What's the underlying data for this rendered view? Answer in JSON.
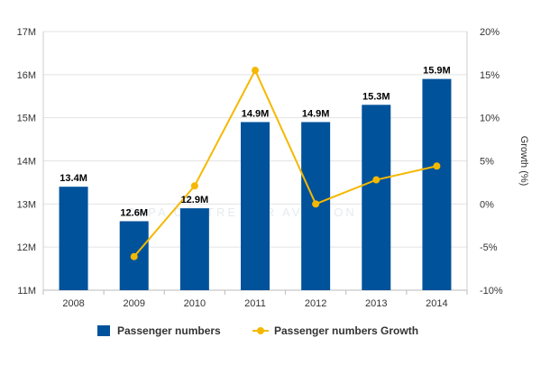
{
  "chart_data": {
    "type": "bar",
    "categories": [
      "2008",
      "2009",
      "2010",
      "2011",
      "2012",
      "2013",
      "2014"
    ],
    "series": [
      {
        "name": "Passenger numbers",
        "type": "bar",
        "axis": "left",
        "color": "#00529b",
        "values": [
          13.4,
          12.6,
          12.9,
          14.9,
          14.9,
          15.3,
          15.9
        ],
        "data_labels": [
          "13.4M",
          "12.6M",
          "12.9M",
          "14.9M",
          "14.9M",
          "15.3M",
          "15.9M"
        ]
      },
      {
        "name": "Passenger numbers Growth",
        "type": "line",
        "axis": "right",
        "color": "#f5b800",
        "values": [
          null,
          -6.1,
          2.1,
          15.5,
          0.0,
          2.8,
          4.4
        ]
      }
    ],
    "y_left": {
      "lim": [
        11,
        17
      ],
      "ticks": [
        11,
        12,
        13,
        14,
        15,
        16,
        17
      ],
      "tick_labels": [
        "11M",
        "12M",
        "13M",
        "14M",
        "15M",
        "16M",
        "17M"
      ]
    },
    "y_right": {
      "label": "Growth (%)",
      "lim": [
        -10,
        20
      ],
      "ticks": [
        -10,
        -5,
        0,
        5,
        10,
        15,
        20
      ],
      "tick_labels": [
        "-10%",
        "-5%",
        "0%",
        "5%",
        "10%",
        "15%",
        "20%"
      ]
    },
    "grid": "horizontal",
    "legend": "bottom",
    "watermark": "CAPA CENTRE FOR AVIATION"
  }
}
